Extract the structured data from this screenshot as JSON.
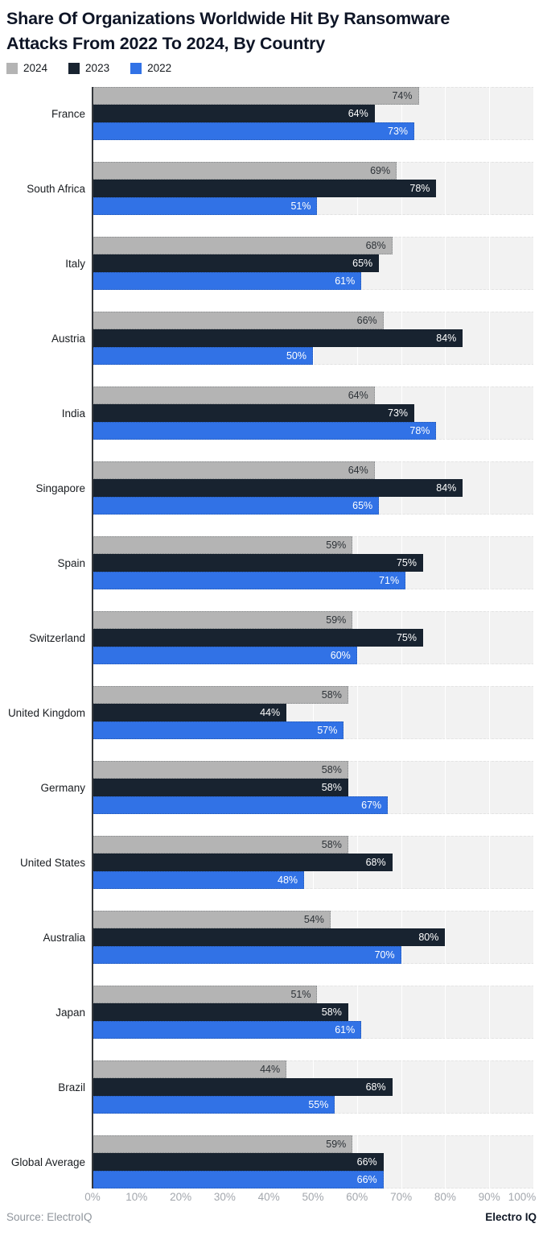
{
  "title": "Share Of Organizations Worldwide Hit By Ransomware Attacks From 2022 To 2024, By Country",
  "legend": [
    {
      "label": "2024",
      "color": "#b4b4b4"
    },
    {
      "label": "2023",
      "color": "#182330"
    },
    {
      "label": "2022",
      "color": "#3172e6"
    }
  ],
  "chart_data": {
    "type": "bar",
    "orientation": "horizontal",
    "title": "Share Of Organizations Worldwide Hit By Ransomware Attacks From 2022 To 2024, By Country",
    "categories": [
      "France",
      "South Africa",
      "Italy",
      "Austria",
      "India",
      "Singapore",
      "Spain",
      "Switzerland",
      "United Kingdom",
      "Germany",
      "United States",
      "Australia",
      "Japan",
      "Brazil",
      "Global Average"
    ],
    "series": [
      {
        "name": "2024",
        "color": "#b4b4b4",
        "value_label_color": "#2d3237",
        "values": [
          74,
          69,
          68,
          66,
          64,
          64,
          59,
          59,
          58,
          58,
          58,
          54,
          51,
          44,
          59
        ]
      },
      {
        "name": "2023",
        "color": "#182330",
        "value_label_color": "#ffffff",
        "values": [
          64,
          78,
          65,
          84,
          73,
          84,
          75,
          75,
          44,
          58,
          68,
          80,
          58,
          68,
          66
        ]
      },
      {
        "name": "2022",
        "color": "#3172e6",
        "value_label_color": "#ffffff",
        "values": [
          73,
          51,
          61,
          50,
          78,
          65,
          71,
          60,
          57,
          67,
          48,
          70,
          61,
          55,
          66
        ]
      }
    ],
    "value_suffix": "%",
    "xlim": [
      0,
      100
    ],
    "xticks": [
      "0%",
      "10%",
      "20%",
      "30%",
      "40%",
      "50%",
      "60%",
      "70%",
      "80%",
      "90%",
      "100%"
    ],
    "grid": "vertical gridlines every 10%, striped row bands behind bar groups",
    "legend_position": "top-left"
  },
  "footer": {
    "source": "Source: ElectroIQ",
    "brand": "Electro IQ"
  }
}
